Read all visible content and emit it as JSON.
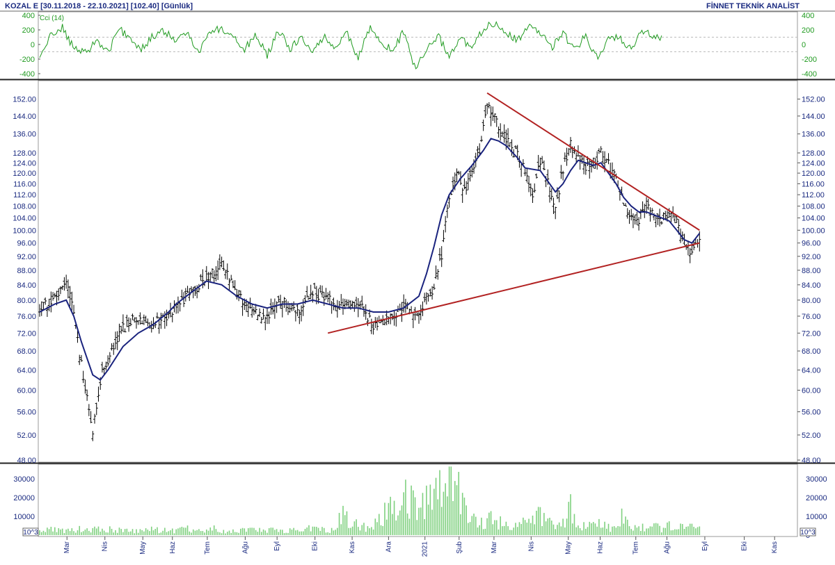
{
  "header": {
    "left": "KOZAL E  [30.11.2018 - 22.10.2021]  [102.40]  [Günlük]",
    "right": "FİNNET TEKNİK ANALİST"
  },
  "colors": {
    "text": "#1a2a80",
    "cci": "#1f9a1f",
    "price_bars": "#000000",
    "moving_average": "#1a237e",
    "trendlines": "#b22222",
    "volume": "#7fd07f"
  },
  "chart_data": [
    {
      "panel": "cci",
      "type": "line",
      "indicator_label": "Cci (14)",
      "yticks": [
        400,
        200,
        0,
        -200,
        -400
      ],
      "yticklabels": [
        "400",
        "200",
        "0",
        "-200",
        "-400"
      ],
      "ylim": [
        -400,
        400
      ],
      "reference_levels": [
        100,
        -100
      ],
      "grid": false,
      "x": [
        0,
        15,
        30,
        45,
        60,
        75,
        90,
        105,
        120,
        135,
        150,
        165,
        180,
        195,
        210,
        225,
        240,
        255,
        270,
        285,
        300,
        315,
        330,
        345,
        360,
        375,
        390,
        405,
        420,
        435,
        450,
        465,
        480,
        495,
        510,
        525,
        540,
        555,
        570,
        585,
        600,
        615,
        630,
        645,
        660,
        675,
        690,
        705,
        720,
        735,
        750,
        765,
        780,
        795,
        810
      ],
      "values": [
        -180,
        140,
        230,
        -60,
        -120,
        60,
        -110,
        210,
        80,
        -60,
        120,
        180,
        40,
        160,
        -100,
        180,
        220,
        120,
        -70,
        130,
        -150,
        190,
        -60,
        100,
        -120,
        120,
        -50,
        160,
        -200,
        230,
        50,
        -100,
        180,
        -330,
        -90,
        120,
        -150,
        80,
        -60,
        210,
        300,
        180,
        40,
        260,
        150,
        -40,
        160,
        -90,
        120,
        -190,
        80,
        100,
        -60,
        200,
        90
      ]
    },
    {
      "panel": "price",
      "type": "ohlc",
      "y_ticks": [
        48,
        52,
        56,
        60,
        64,
        68,
        72,
        76,
        80,
        84,
        88,
        92,
        96,
        100,
        104,
        108,
        112,
        116,
        120,
        124,
        128,
        136,
        144,
        152
      ],
      "y_tick_labels": [
        "48.00",
        "52.00",
        "56.00",
        "60.00",
        "64.00",
        "68.00",
        "72.00",
        "76.00",
        "80.00",
        "84.00",
        "88.00",
        "92.00",
        "96.00",
        "100.00",
        "104.00",
        "108.00",
        "112.00",
        "116.00",
        "120.00",
        "124.00",
        "128.00",
        "136.00",
        "144.00",
        "152.00"
      ],
      "y_scale": "log",
      "ylim": [
        48,
        157
      ],
      "grid": false,
      "x_ticks": [
        "Mar",
        "Nis",
        "May",
        "Haz",
        "Tem",
        "Ağu",
        "Eyl",
        "Eki",
        "Kas",
        "Ara",
        "2021",
        "Şub",
        "Mar",
        "Nis",
        "May",
        "Haz",
        "Tem",
        "Ağu",
        "Eyl",
        "Eki",
        "Kas"
      ],
      "price_path": {
        "x": [
          0,
          20,
          35,
          45,
          50,
          60,
          70,
          80,
          90,
          110,
          130,
          150,
          170,
          180,
          200,
          220,
          240,
          260,
          280,
          300,
          320,
          340,
          360,
          380,
          400,
          420,
          440,
          460,
          480,
          500,
          510,
          520,
          530,
          540,
          550,
          560,
          570,
          580,
          590,
          600,
          615,
          620,
          630,
          640,
          650,
          660,
          670,
          680,
          690,
          700,
          710,
          720,
          730,
          740,
          750,
          760,
          770,
          780,
          790,
          800,
          810,
          820,
          830,
          840,
          850,
          860,
          870
        ],
        "y": [
          78,
          80,
          86,
          76,
          70,
          60,
          52,
          62,
          66,
          73,
          76,
          74,
          76,
          79,
          82,
          86,
          89,
          82,
          77,
          76,
          80,
          77,
          82,
          80,
          78,
          80,
          73,
          76,
          78,
          77,
          80,
          84,
          92,
          110,
          120,
          113,
          120,
          128,
          150,
          143,
          134,
          130,
          127,
          122,
          110,
          125,
          116,
          106,
          122,
          131,
          127,
          122,
          124,
          129,
          123,
          117,
          110,
          104,
          104,
          108,
          105,
          104,
          106,
          103,
          96,
          93,
          97
        ]
      },
      "moving_average": {
        "x": [
          0,
          20,
          35,
          45,
          55,
          70,
          80,
          90,
          110,
          130,
          150,
          170,
          180,
          200,
          220,
          240,
          260,
          280,
          300,
          320,
          340,
          360,
          380,
          400,
          420,
          440,
          460,
          480,
          500,
          510,
          520,
          530,
          540,
          555,
          570,
          585,
          595,
          605,
          615,
          630,
          640,
          660,
          680,
          690,
          700,
          710,
          720,
          730,
          740,
          750,
          760,
          770,
          780,
          790,
          800,
          810,
          820,
          830,
          840,
          850,
          860,
          870
        ],
        "y": [
          77,
          79,
          80,
          76,
          70,
          63,
          62,
          64,
          69,
          72,
          74,
          77,
          79,
          82,
          85,
          84,
          81,
          79,
          78,
          79,
          79,
          80,
          79,
          78,
          78,
          77,
          77,
          78,
          81,
          87,
          95,
          105,
          112,
          118,
          123,
          129,
          134,
          133,
          131,
          126,
          122,
          121,
          113,
          116,
          121,
          125,
          124,
          123,
          124,
          120,
          116,
          111,
          108,
          106,
          106,
          105,
          104,
          103,
          100,
          97,
          96,
          99
        ]
      },
      "trendlines": [
        {
          "label": "upper",
          "x": [
            590,
            870
          ],
          "y": [
            155,
            100
          ]
        },
        {
          "label": "lower",
          "x": [
            380,
            870
          ],
          "y": [
            72,
            96
          ]
        }
      ]
    },
    {
      "panel": "volume",
      "type": "bar",
      "unit_label": "10^3",
      "y_ticks": [
        0,
        10000,
        20000,
        30000
      ],
      "y_tick_labels": [
        "0",
        "10000",
        "20000",
        "30000"
      ],
      "ylim": [
        0,
        37000
      ],
      "x": [
        0,
        10,
        20,
        30,
        40,
        50,
        60,
        70,
        80,
        90,
        100,
        110,
        120,
        130,
        140,
        150,
        160,
        170,
        180,
        190,
        200,
        210,
        220,
        230,
        240,
        250,
        260,
        270,
        280,
        290,
        300,
        310,
        320,
        330,
        340,
        350,
        360,
        370,
        380,
        390,
        400,
        410,
        420,
        430,
        440,
        450,
        460,
        470,
        480,
        490,
        500,
        510,
        520,
        530,
        540,
        550,
        560,
        570,
        580,
        590,
        600,
        610,
        620,
        630,
        640,
        650,
        660,
        670,
        680,
        690,
        700,
        710,
        720,
        730,
        740,
        750,
        760,
        770,
        780,
        790,
        800,
        810,
        820,
        830,
        840,
        850,
        860,
        870
      ],
      "values": [
        2500,
        3000,
        4200,
        2600,
        2400,
        3800,
        3400,
        3900,
        2800,
        3500,
        2600,
        3100,
        2500,
        2900,
        2600,
        3300,
        2800,
        3100,
        2500,
        4300,
        3100,
        2600,
        2900,
        3700,
        2400,
        2800,
        3000,
        2400,
        2900,
        2700,
        2600,
        3000,
        2500,
        2800,
        2400,
        2900,
        4200,
        3000,
        2800,
        3600,
        12500,
        5000,
        6000,
        4000,
        5000,
        12000,
        17000,
        21000,
        23000,
        20000,
        15000,
        18000,
        22000,
        24000,
        36000,
        26000,
        16000,
        11000,
        9000,
        8000,
        10000,
        7000,
        6000,
        8000,
        9000,
        8000,
        12000,
        7000,
        5000,
        6000,
        16000,
        6000,
        6000,
        5000,
        7000,
        5000,
        5000,
        15500,
        6000,
        4500,
        5000,
        4500,
        4000,
        5500,
        4500,
        4000,
        4500,
        4000
      ]
    }
  ]
}
